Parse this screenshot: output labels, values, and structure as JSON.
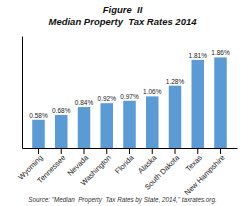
{
  "chart_data": {
    "type": "bar",
    "title": "Figure  II",
    "subtitle": "Median Property  Tax Rates 2014",
    "source": "Source: \"Median  Property  Tax Rates by State, 2014,\" taxrates.org.",
    "categories": [
      "Wyoming",
      "Tennessee",
      "Nevada",
      "Washington",
      "Florida",
      "Alaska",
      "South Dakota",
      "Texas",
      "New Hampshire"
    ],
    "values": [
      0.58,
      0.68,
      0.84,
      0.92,
      0.97,
      1.06,
      1.28,
      1.81,
      1.86
    ],
    "value_labels": [
      "0.58%",
      "0.68%",
      "0.84%",
      "0.92%",
      "0.97%",
      "1.06%",
      "1.28%",
      "1.81%",
      "1.86%"
    ],
    "data_labels": true,
    "color": "#5b9bd5",
    "ylim": [
      0,
      2.3
    ],
    "grid": false,
    "tick_labels": "x"
  }
}
